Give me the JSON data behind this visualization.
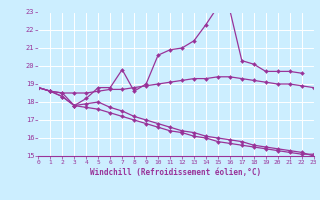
{
  "xlabel": "Windchill (Refroidissement éolien,°C)",
  "bg_color": "#cceeff",
  "line_color": "#993399",
  "grid_color": "#ffffff",
  "xmin": 0,
  "xmax": 23,
  "ymin": 15,
  "ymax": 23,
  "series": [
    {
      "x": [
        0,
        1,
        2,
        3,
        4,
        5,
        6,
        7,
        8,
        9,
        10,
        11,
        12,
        13,
        14,
        15,
        16,
        17,
        18,
        19,
        20,
        21,
        22,
        23
      ],
      "y": [
        18.8,
        18.6,
        18.5,
        18.5,
        18.5,
        18.6,
        18.7,
        18.7,
        18.8,
        18.9,
        19.0,
        19.1,
        19.2,
        19.3,
        19.3,
        19.4,
        19.4,
        19.3,
        19.2,
        19.1,
        19.0,
        19.0,
        18.9,
        18.8
      ]
    },
    {
      "x": [
        0,
        1,
        2,
        3,
        4,
        5,
        6,
        7,
        8,
        9,
        10,
        11,
        12,
        13,
        14,
        15,
        16,
        17,
        18,
        19,
        20,
        21,
        22
      ],
      "y": [
        18.8,
        18.6,
        18.5,
        17.8,
        18.2,
        18.8,
        18.8,
        19.8,
        18.6,
        19.0,
        20.6,
        20.9,
        21.0,
        21.4,
        22.3,
        23.3,
        23.1,
        20.3,
        20.1,
        19.7,
        19.7,
        19.7,
        19.6
      ]
    },
    {
      "x": [
        0,
        1,
        2,
        3,
        4,
        5,
        6,
        7,
        8,
        9,
        10,
        11,
        12,
        13,
        14,
        15,
        16,
        17,
        18,
        19,
        20,
        21,
        22,
        23
      ],
      "y": [
        18.8,
        18.6,
        18.3,
        17.8,
        17.7,
        17.6,
        17.4,
        17.2,
        17.0,
        16.8,
        16.6,
        16.4,
        16.3,
        16.1,
        16.0,
        15.8,
        15.7,
        15.6,
        15.5,
        15.4,
        15.3,
        15.2,
        15.1,
        15.1
      ]
    },
    {
      "x": [
        0,
        1,
        2,
        3,
        4,
        5,
        6,
        7,
        8,
        9,
        10,
        11,
        12,
        13,
        14,
        15,
        16,
        17,
        18,
        19,
        20,
        21,
        22,
        23
      ],
      "y": [
        18.8,
        18.6,
        18.3,
        17.8,
        17.9,
        18.0,
        17.7,
        17.5,
        17.2,
        17.0,
        16.8,
        16.6,
        16.4,
        16.3,
        16.1,
        16.0,
        15.9,
        15.8,
        15.6,
        15.5,
        15.4,
        15.3,
        15.2,
        15.0
      ]
    }
  ],
  "yticks": [
    15,
    16,
    17,
    18,
    19,
    20,
    21,
    22,
    23
  ],
  "xticks": [
    0,
    1,
    2,
    3,
    4,
    5,
    6,
    7,
    8,
    9,
    10,
    11,
    12,
    13,
    14,
    15,
    16,
    17,
    18,
    19,
    20,
    21,
    22,
    23
  ]
}
